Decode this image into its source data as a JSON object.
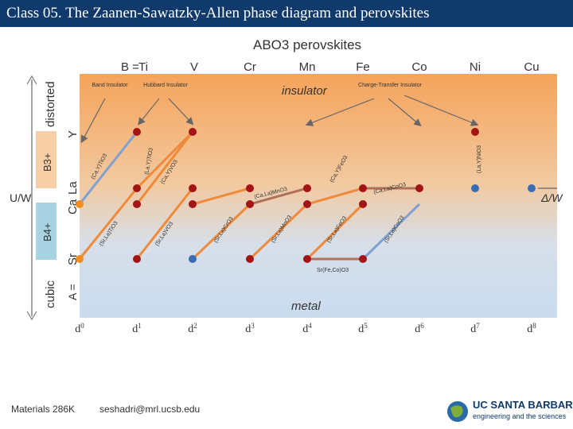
{
  "header": {
    "title": "Class 05. The Zaanen-Sawatzky-Allen phase diagram and perovskites"
  },
  "diagram": {
    "top_title": "ABO3 perovskites",
    "b_prefix": "B = ",
    "b_sites": [
      "Ti",
      "V",
      "Cr",
      "Mn",
      "Fe",
      "Co",
      "Ni",
      "Cu"
    ],
    "d_labels": [
      "d0",
      "d1",
      "d2",
      "d3",
      "d4",
      "d5",
      "d6",
      "d7",
      "d8"
    ],
    "region_insulator": "insulator",
    "region_metal": "metal",
    "band_insulator": "Band Insulator",
    "hubbard_insulator": "Hubbard Insulator",
    "charge_transfer_insulator": "Charge-Transfer Insulator",
    "left_axis": {
      "distorted": "distorted",
      "cubic": "cubic",
      "u_over_w": "U/W",
      "b3": "B3+",
      "b4": "B4+",
      "a_prefix": "A =",
      "a_ions": [
        "Y",
        "La",
        "Ca",
        "Sr"
      ]
    },
    "right_axis": {
      "delta_over_w": "Δ/W"
    },
    "compound_labels": [
      "(Ca,Y)TiO3",
      "(La,Y)TiO3",
      "(Ca,Y)VO3",
      "(Ca,La)MnO3",
      "(Ca,Y)FeO3",
      "(Ca,La)CoO3",
      "(La,Y)NiO3",
      "(Sr,La)TiO3",
      "(Sr,La)VO3",
      "(Sr,La)CrO3",
      "(Sr,La)MnO3",
      "(Sr,La)FeO3",
      "(Sr,La)CoO3",
      "Sr(Fe,Co)O3"
    ],
    "colors": {
      "insulator_top": "#f5a35a",
      "metal_bottom": "#c9dcef",
      "red_dot": "#a31515",
      "orange_dot": "#f28c1e",
      "blue_dot": "#3b6db4",
      "orange_line": "#ef8a3a",
      "blue_line": "#7fa0d0",
      "brown_line": "#b0705a"
    }
  },
  "footer": {
    "course": "Materials 286K",
    "email": "seshadri@mrl.ucsb.edu",
    "logo_name": "UC SANTA BARBARA",
    "logo_sub": "engineering and the sciences"
  }
}
